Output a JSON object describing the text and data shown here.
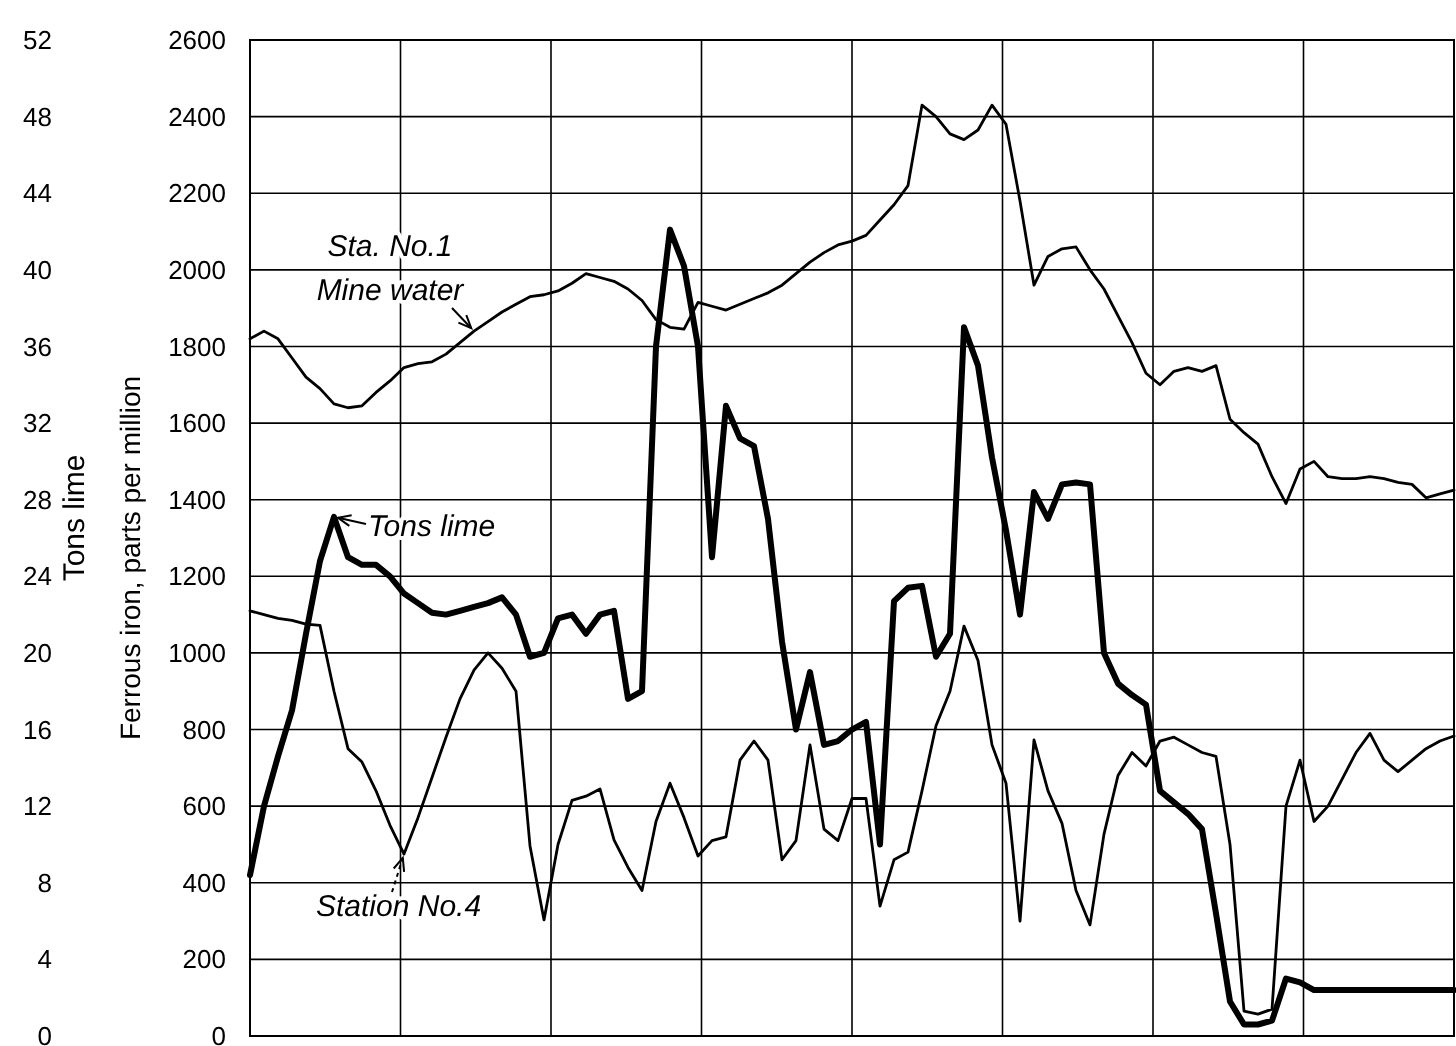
{
  "chart_data": {
    "type": "line",
    "ylabel": "Ferrous iron, parts per million",
    "y2label": "Tons lime",
    "categories": [
      null,
      null,
      null,
      null,
      null,
      null,
      null,
      null,
      null,
      null,
      null,
      null,
      null,
      null,
      null,
      null,
      null,
      null,
      null,
      null,
      null,
      null,
      null,
      null,
      null,
      null,
      null,
      null,
      null,
      null,
      null,
      null,
      null,
      null,
      null,
      null,
      null,
      null,
      null,
      null,
      null,
      null,
      null,
      null,
      null,
      null,
      null,
      null,
      null,
      null,
      null,
      null,
      null,
      null,
      null,
      null,
      null,
      null,
      null,
      null,
      null,
      null,
      null,
      null,
      null,
      null,
      null,
      null,
      null,
      null,
      null,
      null,
      null,
      null,
      null,
      null,
      null,
      null,
      null,
      null,
      null,
      null,
      null,
      null,
      null,
      null,
      null
    ],
    "ylim": [
      0,
      2600
    ],
    "yticks": [
      0,
      200,
      400,
      600,
      800,
      1000,
      1200,
      1400,
      1600,
      1800,
      2000,
      2200,
      2400,
      2600
    ],
    "y2lim": [
      0,
      52
    ],
    "y2ticks": [
      0,
      4,
      8,
      12,
      16,
      20,
      24,
      28,
      32,
      36,
      40,
      44,
      48,
      52
    ],
    "grid": true,
    "series": [
      {
        "name": "Sta. No.1 Mine water",
        "color": "#000000",
        "values": [
          1820,
          1840,
          1820,
          1770,
          1720,
          1690,
          1650,
          1640,
          1645,
          1680,
          1710,
          1745,
          1755,
          1760,
          1780,
          1810,
          1840,
          1865,
          1890,
          1910,
          1930,
          1935,
          1945,
          1965,
          1990,
          1980,
          1970,
          1950,
          1920,
          1870,
          1850,
          1845,
          1915,
          1905,
          1895,
          1910,
          1925,
          1940,
          1960,
          1990,
          2020,
          2045,
          2065,
          2075,
          2090,
          2130,
          2170,
          2220,
          2430,
          2400,
          2355,
          2340,
          2365,
          2430,
          2380,
          2180,
          1960,
          2035,
          2055,
          2060,
          2000,
          1950,
          1880,
          1810,
          1730,
          1700,
          1735,
          1745,
          1735,
          1750,
          1610,
          1575,
          1545,
          1460,
          1390,
          1480,
          1500,
          1460,
          1455,
          1455,
          1460,
          1455,
          1445,
          1440,
          1405,
          1415,
          1425
        ]
      },
      {
        "name": "Tons lime",
        "color": "#000000",
        "axis": "y2",
        "values": [
          8.4,
          12,
          14.6,
          17,
          21,
          24.8,
          27.1,
          25,
          24.6,
          24.6,
          24,
          23.1,
          22.6,
          22.1,
          22,
          22.2,
          22.4,
          22.6,
          22.9,
          22,
          19.8,
          20,
          21.8,
          22,
          21,
          22,
          22.2,
          17.6,
          18,
          36,
          42.1,
          40.2,
          36,
          25,
          32.9,
          31.2,
          30.8,
          27,
          20.6,
          16,
          19,
          15.2,
          15.4,
          16,
          16.4,
          10,
          22.7,
          23.4,
          23.5,
          19.8,
          21,
          37,
          35,
          30.2,
          26.4,
          22,
          28.4,
          27,
          28.8,
          28.9,
          28.8,
          20,
          18.4,
          17.8,
          17.3,
          12.8,
          12.2,
          11.6,
          10.8,
          6.4,
          1.8,
          0.6,
          0.6,
          0.8,
          3,
          2.8,
          2.4,
          2.4,
          2.4,
          2.4,
          2.4,
          2.4,
          2.4,
          2.4,
          2.4,
          2.4,
          2.4
        ]
      },
      {
        "name": "Station No.4",
        "color": "#000000",
        "values": [
          1110,
          1100,
          1090,
          1085,
          1075,
          1072,
          900,
          750,
          715,
          640,
          550,
          475,
          570,
          675,
          780,
          880,
          955,
          1000,
          960,
          900,
          496,
          303,
          500,
          615,
          626,
          645,
          512,
          440,
          380,
          560,
          660,
          570,
          470,
          510,
          520,
          720,
          770,
          720,
          460,
          510,
          760,
          540,
          510,
          620,
          620,
          339,
          460,
          480,
          640,
          810,
          900,
          1070,
          980,
          760,
          660,
          300,
          773,
          640,
          555,
          380,
          290,
          527,
          680,
          740,
          705,
          770,
          780,
          760,
          740,
          730,
          500,
          65,
          57,
          70,
          600,
          720,
          560,
          600,
          670,
          740,
          790,
          720,
          690,
          720,
          750,
          770,
          783
        ]
      }
    ]
  }
}
